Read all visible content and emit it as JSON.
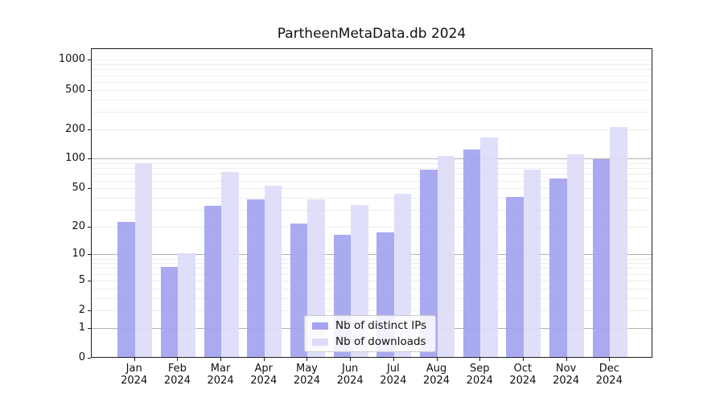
{
  "figure": {
    "background": "#ffffff",
    "title": "PartheenMetaData.db 2024"
  },
  "chart_data": {
    "type": "bar",
    "title": "PartheenMetaData.db 2024",
    "categories": [
      "Jan",
      "Feb",
      "Mar",
      "Apr",
      "May",
      "Jun",
      "Jul",
      "Aug",
      "Sep",
      "Oct",
      "Nov",
      "Dec"
    ],
    "category_year": "2024",
    "series": [
      {
        "key": "distinct-ips",
        "name": "Nb of distinct IPs",
        "color": "#a3a3f0",
        "values": [
          22,
          7,
          32,
          38,
          21,
          16,
          17,
          76,
          122,
          40,
          62,
          97
        ]
      },
      {
        "key": "downloads",
        "name": "Nb of downloads",
        "color": "#dcdcf8",
        "values": [
          88,
          10,
          72,
          52,
          38,
          33,
          43,
          105,
          160,
          76,
          109,
          205
        ]
      }
    ],
    "y_ticks": [
      0,
      1,
      2,
      5,
      10,
      20,
      50,
      100,
      200,
      500,
      1000
    ],
    "y_scale": "log1p",
    "ylim": [
      0,
      1340
    ],
    "xlabel": "",
    "ylabel": "",
    "grid": true,
    "legend_position": "lower-center"
  }
}
